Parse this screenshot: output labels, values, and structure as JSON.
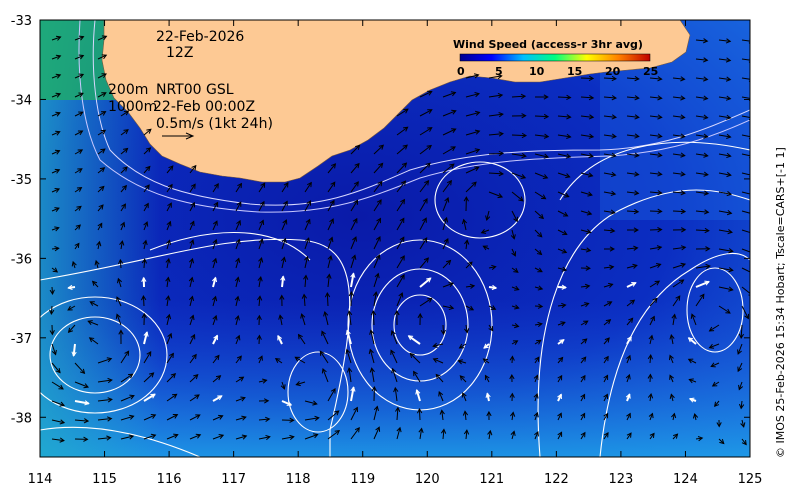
{
  "map": {
    "date": "22-Feb-2026",
    "hour": "12Z",
    "depth_200": "200m",
    "depth_1000": "1000m",
    "product": "NRT00 GSL",
    "run_time": "22-Feb 00:00Z",
    "vector_scale": "0.5m/s (1kt 24h)",
    "credit": "© IMOS 25-Feb-2026 15:34 Hobart; Tscale=CARS+[-1 1]",
    "land_color": "#fdc994",
    "ocean_deep_color": "#0a1aa8",
    "ocean_shallow_color": "#2a8ff0"
  },
  "colorbar": {
    "title": "Wind Speed (access-r 3hr avg)",
    "ticks": [
      "0",
      "5",
      "10",
      "15",
      "20",
      "25"
    ],
    "colors": [
      "#00008f",
      "#0000ff",
      "#00bfff",
      "#00ff80",
      "#ffff00",
      "#ff8000",
      "#c00000"
    ]
  },
  "axes": {
    "x_ticks": [
      "114",
      "115",
      "116",
      "117",
      "118",
      "119",
      "120",
      "121",
      "122",
      "123",
      "124",
      "125"
    ],
    "y_ticks": [
      "-33",
      "-34",
      "-35",
      "-36",
      "-37",
      "-38"
    ],
    "xlim": [
      114,
      125
    ],
    "ylim": [
      -38.5,
      -33
    ]
  }
}
